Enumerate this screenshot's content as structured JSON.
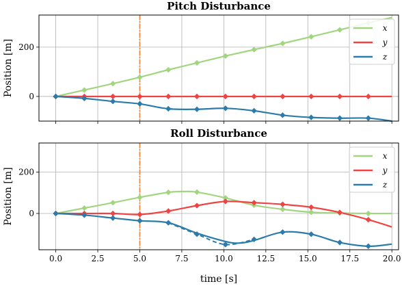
{
  "chart_data": [
    {
      "type": "line",
      "title": "Pitch Disturbance",
      "ylabel": "Position [m]",
      "xlabel": "",
      "xlim": [
        -1,
        20.4
      ],
      "ylim": [
        -100,
        330
      ],
      "xticks": [
        0.0,
        2.5,
        5.0,
        7.5,
        10.0,
        12.5,
        15.0,
        17.5,
        20.0
      ],
      "yticks": [
        0,
        200
      ],
      "ytick_labels": [
        "0",
        "200"
      ],
      "grid": true,
      "legend": "top-right",
      "event_line_x": 5.0,
      "series": [
        {
          "name": "x",
          "color": "#a1d57f",
          "x": [
            0,
            1.7,
            3.4,
            5.0,
            6.7,
            8.4,
            10.1,
            11.8,
            13.5,
            15.2,
            16.9,
            18.6,
            20.0
          ],
          "values": [
            0,
            26,
            52,
            78,
            108,
            136,
            164,
            190,
            215,
            242,
            270,
            298,
            320
          ]
        },
        {
          "name": "y",
          "color": "#ee4444",
          "x": [
            0,
            1.7,
            3.4,
            5.0,
            6.7,
            8.4,
            10.1,
            11.8,
            13.5,
            15.2,
            16.9,
            18.6,
            20.0
          ],
          "values": [
            0,
            0,
            0,
            0,
            0,
            0,
            0,
            0,
            0,
            0,
            0,
            0,
            0
          ]
        },
        {
          "name": "z",
          "color": "#2b7bab",
          "x": [
            0,
            1.7,
            3.4,
            5.0,
            6.7,
            8.4,
            10.1,
            11.8,
            13.5,
            15.2,
            16.9,
            18.6,
            20.0
          ],
          "values": [
            0,
            -8,
            -20,
            -30,
            -50,
            -52,
            -48,
            -58,
            -76,
            -85,
            -88,
            -88,
            -100
          ]
        }
      ],
      "markers": [
        {
          "color": "#a1d57f",
          "x": [
            0,
            1.7,
            3.4,
            5.0,
            6.7,
            8.4,
            10.1,
            11.8,
            13.5,
            15.2,
            16.9,
            18.6
          ],
          "values": [
            0,
            26,
            52,
            78,
            108,
            136,
            164,
            190,
            215,
            242,
            270,
            298
          ]
        },
        {
          "color": "#ee4444",
          "x": [
            0,
            1.7,
            3.4,
            5.0,
            6.7,
            8.4,
            10.1,
            11.8,
            13.5,
            15.2,
            16.9,
            18.6
          ],
          "values": [
            0,
            0,
            0,
            0,
            0,
            0,
            0,
            0,
            0,
            0,
            0,
            0
          ]
        },
        {
          "color": "#2b7bab",
          "x": [
            0,
            1.7,
            3.4,
            5.0,
            6.7,
            8.4,
            10.1,
            11.8,
            13.5,
            15.2,
            16.9,
            18.6
          ],
          "values": [
            0,
            -8,
            -20,
            -30,
            -50,
            -52,
            -48,
            -58,
            -76,
            -85,
            -88,
            -88
          ]
        }
      ]
    },
    {
      "type": "line",
      "title": "Roll Disturbance",
      "ylabel": "Position [m]",
      "xlabel": "time [s]",
      "xlim": [
        -1,
        20.4
      ],
      "ylim": [
        -175,
        340
      ],
      "xticks": [
        0.0,
        2.5,
        5.0,
        7.5,
        10.0,
        12.5,
        15.0,
        17.5,
        20.0
      ],
      "xtick_labels": [
        "0.0",
        "2.5",
        "5.0",
        "7.5",
        "10.0",
        "12.5",
        "15.0",
        "17.5",
        "20.0"
      ],
      "yticks": [
        0,
        200
      ],
      "ytick_labels": [
        "0",
        "200"
      ],
      "grid": true,
      "legend": "top-right",
      "event_line_x": 5.0,
      "series": [
        {
          "name": "x",
          "color": "#a1d57f",
          "x": [
            0,
            1.7,
            3.4,
            5.0,
            6.7,
            7.6,
            8.4,
            10.1,
            11.8,
            13.5,
            15.2,
            16.9,
            18.6,
            20.0
          ],
          "values": [
            0,
            26,
            52,
            78,
            102,
            106,
            103,
            75,
            40,
            20,
            6,
            2,
            0,
            0
          ]
        },
        {
          "name": "y",
          "color": "#ee4444",
          "x": [
            0,
            1.7,
            3.4,
            5.0,
            6.7,
            8.4,
            10.1,
            11.8,
            13.5,
            15.2,
            16.9,
            18.6,
            20.0
          ],
          "values": [
            0,
            0,
            0,
            -5,
            12,
            38,
            58,
            52,
            44,
            30,
            5,
            -30,
            -65
          ]
        },
        {
          "name": "z",
          "color": "#2b7bab",
          "x": [
            0,
            1.7,
            3.4,
            5.0,
            6.7,
            8.4,
            10.1,
            10.9,
            11.8,
            13.5,
            15.2,
            16.9,
            18.6,
            20.0
          ],
          "values": [
            0,
            -8,
            -22,
            -35,
            -45,
            -95,
            -135,
            -143,
            -130,
            -90,
            -100,
            -140,
            -158,
            -148
          ]
        }
      ],
      "dashed_series": [
        {
          "color": "#2b7bab",
          "x": [
            6.7,
            8.4,
            10.1,
            11.8
          ],
          "values": [
            -45,
            -100,
            -150,
            -125
          ]
        }
      ],
      "markers": [
        {
          "color": "#a1d57f",
          "x": [
            0,
            1.7,
            3.4,
            5.0,
            6.7,
            8.4,
            10.1,
            11.8,
            13.5,
            15.2,
            16.9,
            18.6
          ],
          "values": [
            0,
            26,
            52,
            78,
            102,
            103,
            75,
            40,
            20,
            6,
            2,
            0
          ]
        },
        {
          "color": "#ee4444",
          "x": [
            0,
            1.7,
            3.4,
            5.0,
            6.7,
            8.4,
            10.1,
            11.8,
            13.5,
            15.2,
            16.9,
            18.6
          ],
          "values": [
            0,
            0,
            0,
            -5,
            12,
            38,
            58,
            52,
            44,
            30,
            5,
            -30
          ]
        },
        {
          "color": "#2b7bab",
          "x": [
            0,
            1.7,
            3.4,
            5.0,
            6.7,
            8.4,
            10.1,
            11.8,
            13.5,
            15.2,
            16.9,
            18.6
          ],
          "values": [
            0,
            -8,
            -22,
            -35,
            -45,
            -100,
            -150,
            -125,
            -90,
            -100,
            -140,
            -158
          ]
        }
      ]
    }
  ]
}
